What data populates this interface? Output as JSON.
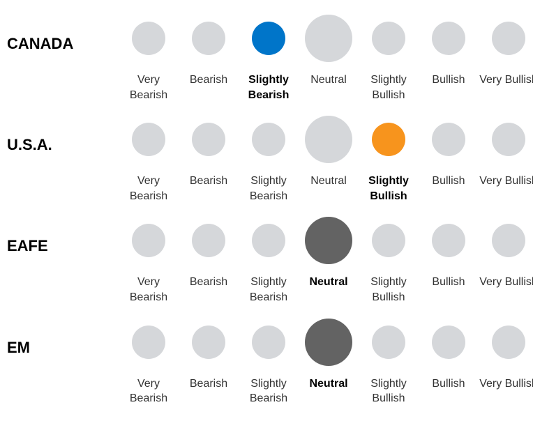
{
  "sentiment_grid": {
    "type": "dot-matrix-infographic",
    "background_color": "#ffffff",
    "row_label_fontsize": 22,
    "row_label_weight": 700,
    "cell_label_fontsize": 16,
    "cell_label_color": "#333333",
    "cell_label_selected_color": "#000000",
    "colors": {
      "inactive": "#d5d7da",
      "selected_blue": "#0075c9",
      "selected_orange": "#f7941d",
      "selected_gray": "#636363"
    },
    "circle_sizes": {
      "default": 48,
      "neutral": 68
    },
    "scale_labels": [
      "Very Bearish",
      "Bearish",
      "Slightly Bearish",
      "Neutral",
      "Slightly Bullish",
      "Bullish",
      "Very Bullish"
    ],
    "rows": [
      {
        "label": "CANADA",
        "selected_index": 2,
        "selected_color_key": "selected_blue"
      },
      {
        "label": "U.S.A.",
        "selected_index": 4,
        "selected_color_key": "selected_orange"
      },
      {
        "label": "EAFE",
        "selected_index": 3,
        "selected_color_key": "selected_gray"
      },
      {
        "label": "EM",
        "selected_index": 3,
        "selected_color_key": "selected_gray"
      }
    ]
  }
}
